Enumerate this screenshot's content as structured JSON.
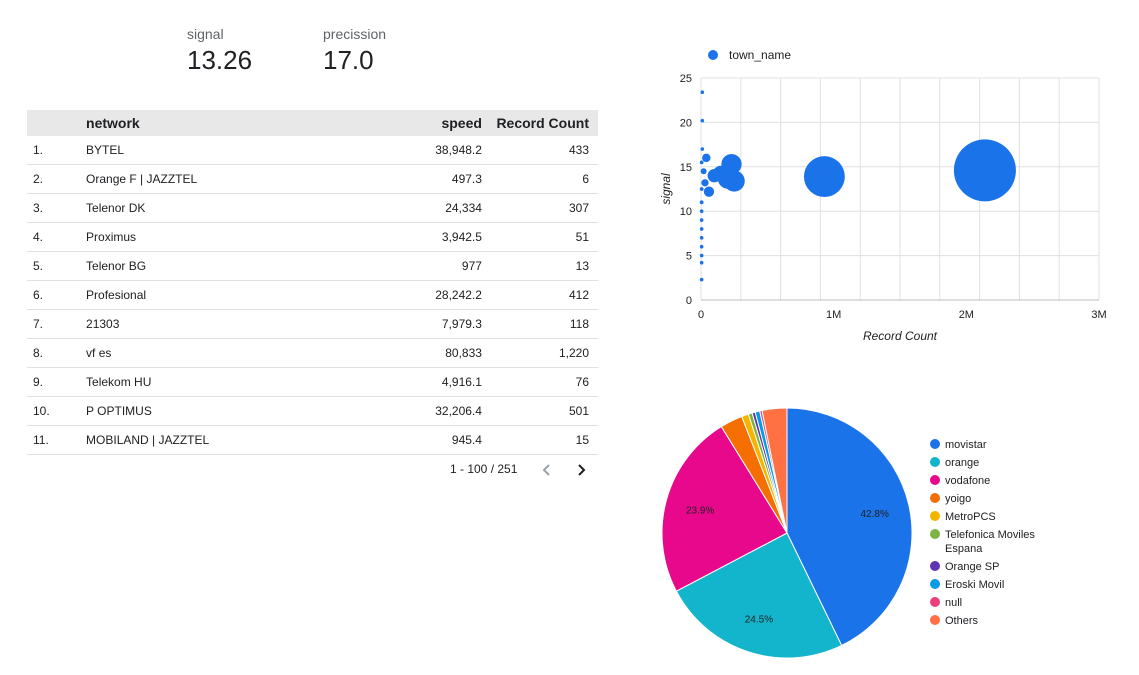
{
  "scorecards": [
    {
      "label": "signal",
      "value": "13.26"
    },
    {
      "label": "precission",
      "value": "17.0"
    }
  ],
  "table": {
    "headers": {
      "network": "network",
      "speed": "speed",
      "count": "Record Count"
    },
    "rows": [
      {
        "idx": "1.",
        "network": "BYTEL",
        "speed": "38,948.2",
        "count": "433"
      },
      {
        "idx": "2.",
        "network": "Orange F | JAZZTEL",
        "speed": "497.3",
        "count": "6"
      },
      {
        "idx": "3.",
        "network": "Telenor DK",
        "speed": "24,334",
        "count": "307"
      },
      {
        "idx": "4.",
        "network": "Proximus",
        "speed": "3,942.5",
        "count": "51"
      },
      {
        "idx": "5.",
        "network": "Telenor BG",
        "speed": "977",
        "count": "13"
      },
      {
        "idx": "6.",
        "network": "Profesional",
        "speed": "28,242.2",
        "count": "412"
      },
      {
        "idx": "7.",
        "network": "21303",
        "speed": "7,979.3",
        "count": "118"
      },
      {
        "idx": "8.",
        "network": "vf es",
        "speed": "80,833",
        "count": "1,220"
      },
      {
        "idx": "9.",
        "network": "Telekom HU",
        "speed": "4,916.1",
        "count": "76"
      },
      {
        "idx": "10.",
        "network": "P OPTIMUS",
        "speed": "32,206.4",
        "count": "501"
      },
      {
        "idx": "11.",
        "network": "MOBILAND | JAZZTEL",
        "speed": "945.4",
        "count": "15"
      }
    ],
    "pagination": "1 - 100 / 251",
    "icons": {
      "prev": "chevron-left-icon",
      "next": "chevron-right-icon"
    }
  },
  "chart_data": [
    {
      "type": "scatter",
      "legend": [
        "town_name"
      ],
      "legend_position": "top-left",
      "xlabel": "Record Count",
      "ylabel": "signal",
      "xlim": [
        0,
        3000000
      ],
      "ylim": [
        0,
        25
      ],
      "x_ticks": [
        0,
        1000000,
        2000000,
        3000000
      ],
      "x_tick_labels": [
        "0",
        "1M",
        "2M",
        "3M"
      ],
      "y_ticks": [
        0,
        5,
        10,
        15,
        20,
        25
      ],
      "grid": true,
      "color": "#1a73e8",
      "points": [
        {
          "x": 2140000,
          "y": 14.6,
          "size": 2140000
        },
        {
          "x": 930000,
          "y": 13.9,
          "size": 930000
        },
        {
          "x": 230000,
          "y": 15.3,
          "size": 230000
        },
        {
          "x": 250000,
          "y": 13.4,
          "size": 250000
        },
        {
          "x": 200000,
          "y": 13.6,
          "size": 200000
        },
        {
          "x": 150000,
          "y": 14.2,
          "size": 150000
        },
        {
          "x": 100000,
          "y": 14.0,
          "size": 100000
        },
        {
          "x": 60000,
          "y": 12.2,
          "size": 60000
        },
        {
          "x": 40000,
          "y": 16.0,
          "size": 40000
        },
        {
          "x": 30000,
          "y": 13.2,
          "size": 30000
        },
        {
          "x": 20000,
          "y": 14.5,
          "size": 20000
        },
        {
          "x": 10000,
          "y": 23.4,
          "size": 1000
        },
        {
          "x": 10000,
          "y": 20.2,
          "size": 1500
        },
        {
          "x": 10000,
          "y": 17.0,
          "size": 3000
        },
        {
          "x": 5000,
          "y": 15.5,
          "size": 8000
        },
        {
          "x": 5000,
          "y": 12.5,
          "size": 8000
        },
        {
          "x": 5000,
          "y": 11.0,
          "size": 8000
        },
        {
          "x": 5000,
          "y": 10.0,
          "size": 6000
        },
        {
          "x": 5000,
          "y": 9.0,
          "size": 4000
        },
        {
          "x": 5000,
          "y": 8.0,
          "size": 3000
        },
        {
          "x": 5000,
          "y": 7.0,
          "size": 2000
        },
        {
          "x": 5000,
          "y": 6.0,
          "size": 1500
        },
        {
          "x": 5000,
          "y": 5.0,
          "size": 1200
        },
        {
          "x": 5000,
          "y": 4.2,
          "size": 1000
        },
        {
          "x": 5000,
          "y": 2.3,
          "size": 800
        }
      ]
    },
    {
      "type": "pie",
      "legend_position": "right",
      "slices": [
        {
          "label": "movistar",
          "value": 42.8,
          "color": "#1a73e8",
          "pct_label": "42.8%"
        },
        {
          "label": "orange",
          "value": 24.5,
          "color": "#12b5cb",
          "pct_label": "24.5%"
        },
        {
          "label": "vodafone",
          "value": 23.9,
          "color": "#e8088b",
          "pct_label": "23.9%"
        },
        {
          "label": "yoigo",
          "value": 2.9,
          "color": "#f56e02",
          "pct_label": ""
        },
        {
          "label": "MetroPCS",
          "value": 0.9,
          "color": "#f4b400",
          "pct_label": ""
        },
        {
          "label": "Telefonica Moviles Espana",
          "value": 0.5,
          "color": "#7cb342",
          "pct_label": ""
        },
        {
          "label": "Orange SP",
          "value": 0.4,
          "color": "#5e35b1",
          "pct_label": ""
        },
        {
          "label": "Eroski Movil",
          "value": 0.6,
          "color": "#039be5",
          "pct_label": ""
        },
        {
          "label": "null",
          "value": 0.3,
          "color": "#ec407a",
          "pct_label": ""
        },
        {
          "label": "Others",
          "value": 3.2,
          "color": "#ff7043",
          "pct_label": ""
        }
      ]
    }
  ]
}
